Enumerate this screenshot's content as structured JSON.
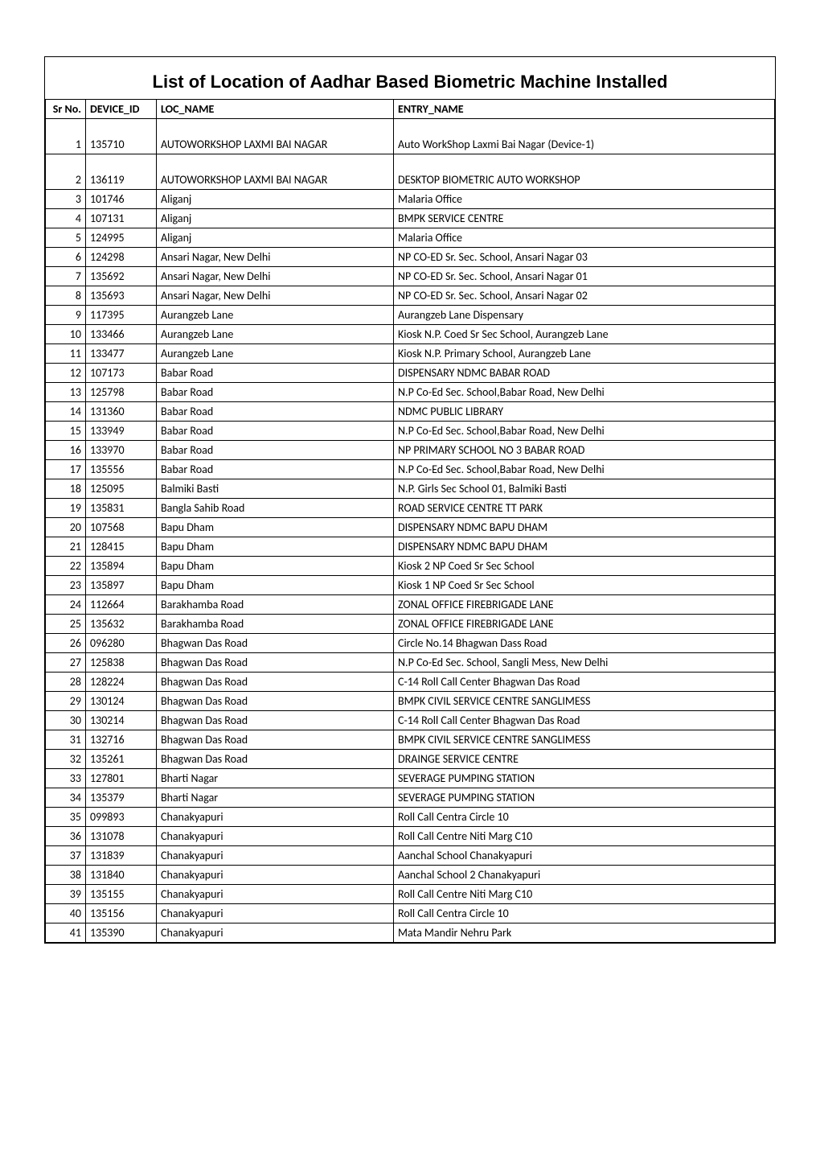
{
  "title": "List of Location of Aadhar Based Biometric Machine Installed",
  "table": {
    "columns": [
      "Sr No.",
      "DEVICE_ID",
      "LOC_NAME",
      "ENTRY_NAME"
    ],
    "rows": [
      [
        "1",
        "135710",
        "AUTOWORKSHOP LAXMI BAI NAGAR",
        "Auto WorkShop Laxmi Bai Nagar (Device-1)"
      ],
      [
        "2",
        "136119",
        "AUTOWORKSHOP LAXMI BAI NAGAR",
        "DESKTOP BIOMETRIC AUTO WORKSHOP"
      ],
      [
        "3",
        "101746",
        "Aliganj",
        "Malaria Office"
      ],
      [
        "4",
        "107131",
        "Aliganj",
        "BMPK SERVICE CENTRE"
      ],
      [
        "5",
        "124995",
        "Aliganj",
        "Malaria Office"
      ],
      [
        "6",
        "124298",
        "Ansari Nagar, New Delhi",
        "NP CO-ED Sr. Sec. School, Ansari Nagar 03"
      ],
      [
        "7",
        "135692",
        "Ansari Nagar, New Delhi",
        "NP CO-ED Sr. Sec. School, Ansari Nagar 01"
      ],
      [
        "8",
        "135693",
        "Ansari Nagar, New Delhi",
        "NP CO-ED Sr. Sec. School, Ansari Nagar 02"
      ],
      [
        "9",
        "117395",
        "Aurangzeb Lane",
        "Aurangzeb Lane Dispensary"
      ],
      [
        "10",
        "133466",
        "Aurangzeb Lane",
        "Kiosk N.P. Coed Sr Sec School, Aurangzeb Lane"
      ],
      [
        "11",
        "133477",
        "Aurangzeb Lane",
        "Kiosk N.P. Primary School, Aurangzeb Lane"
      ],
      [
        "12",
        "107173",
        "Babar Road",
        "DISPENSARY NDMC BABAR ROAD"
      ],
      [
        "13",
        "125798",
        "Babar Road",
        "N.P Co-Ed Sec. School,Babar Road, New Delhi"
      ],
      [
        "14",
        "131360",
        "Babar Road",
        "NDMC PUBLIC LIBRARY"
      ],
      [
        "15",
        "133949",
        "Babar Road",
        "N.P Co-Ed Sec. School,Babar Road, New Delhi"
      ],
      [
        "16",
        "133970",
        "Babar Road",
        "NP PRIMARY SCHOOL NO 3 BABAR ROAD"
      ],
      [
        "17",
        "135556",
        "Babar Road",
        "N.P Co-Ed Sec. School,Babar Road, New Delhi"
      ],
      [
        "18",
        "125095",
        "Balmiki Basti",
        "N.P. Girls Sec School 01, Balmiki Basti"
      ],
      [
        "19",
        "135831",
        "Bangla Sahib Road",
        "ROAD SERVICE CENTRE TT PARK"
      ],
      [
        "20",
        "107568",
        "Bapu Dham",
        "DISPENSARY NDMC BAPU DHAM"
      ],
      [
        "21",
        "128415",
        "Bapu Dham",
        "DISPENSARY NDMC BAPU DHAM"
      ],
      [
        "22",
        "135894",
        "Bapu Dham",
        "Kiosk 2 NP Coed Sr Sec School"
      ],
      [
        "23",
        "135897",
        "Bapu Dham",
        "Kiosk 1 NP Coed Sr Sec School"
      ],
      [
        "24",
        "112664",
        "Barakhamba Road",
        "ZONAL OFFICE FIREBRIGADE LANE"
      ],
      [
        "25",
        "135632",
        "Barakhamba Road",
        "ZONAL OFFICE FIREBRIGADE LANE"
      ],
      [
        "26",
        "096280",
        "Bhagwan Das Road",
        "Circle No.14 Bhagwan Dass Road"
      ],
      [
        "27",
        "125838",
        "Bhagwan Das Road",
        "N.P Co-Ed Sec. School, Sangli Mess, New Delhi"
      ],
      [
        "28",
        "128224",
        "Bhagwan Das Road",
        "C-14 Roll Call Center Bhagwan Das Road"
      ],
      [
        "29",
        "130124",
        "Bhagwan Das Road",
        "BMPK CIVIL SERVICE CENTRE SANGLIMESS"
      ],
      [
        "30",
        "130214",
        "Bhagwan Das Road",
        "C-14 Roll Call Center Bhagwan Das Road"
      ],
      [
        "31",
        "132716",
        "Bhagwan Das Road",
        "BMPK CIVIL SERVICE CENTRE SANGLIMESS"
      ],
      [
        "32",
        "135261",
        "Bhagwan Das Road",
        "DRAINGE SERVICE CENTRE"
      ],
      [
        "33",
        "127801",
        "Bharti Nagar",
        "SEVERAGE PUMPING STATION"
      ],
      [
        "34",
        "135379",
        "Bharti Nagar",
        "SEVERAGE PUMPING STATION"
      ],
      [
        "35",
        "099893",
        "Chanakyapuri",
        "Roll Call Centra Circle 10"
      ],
      [
        "36",
        "131078",
        "Chanakyapuri",
        "Roll Call Centre Niti Marg C10"
      ],
      [
        "37",
        "131839",
        "Chanakyapuri",
        "Aanchal School Chanakyapuri"
      ],
      [
        "38",
        "131840",
        "Chanakyapuri",
        "Aanchal School 2 Chanakyapuri"
      ],
      [
        "39",
        "135155",
        "Chanakyapuri",
        "Roll Call Centre Niti Marg C10"
      ],
      [
        "40",
        "135156",
        "Chanakyapuri",
        "Roll Call Centra Circle 10"
      ],
      [
        "41",
        "135390",
        "Chanakyapuri",
        "Mata Mandir Nehru Park"
      ]
    ],
    "tall_rows": [
      0,
      1
    ],
    "column_widths": [
      "50px",
      "88px",
      "295px",
      "auto"
    ],
    "border_color": "#000000",
    "background_color": "#ffffff",
    "header_fontsize": 14,
    "cell_fontsize": 14,
    "title_fontsize": 22
  }
}
